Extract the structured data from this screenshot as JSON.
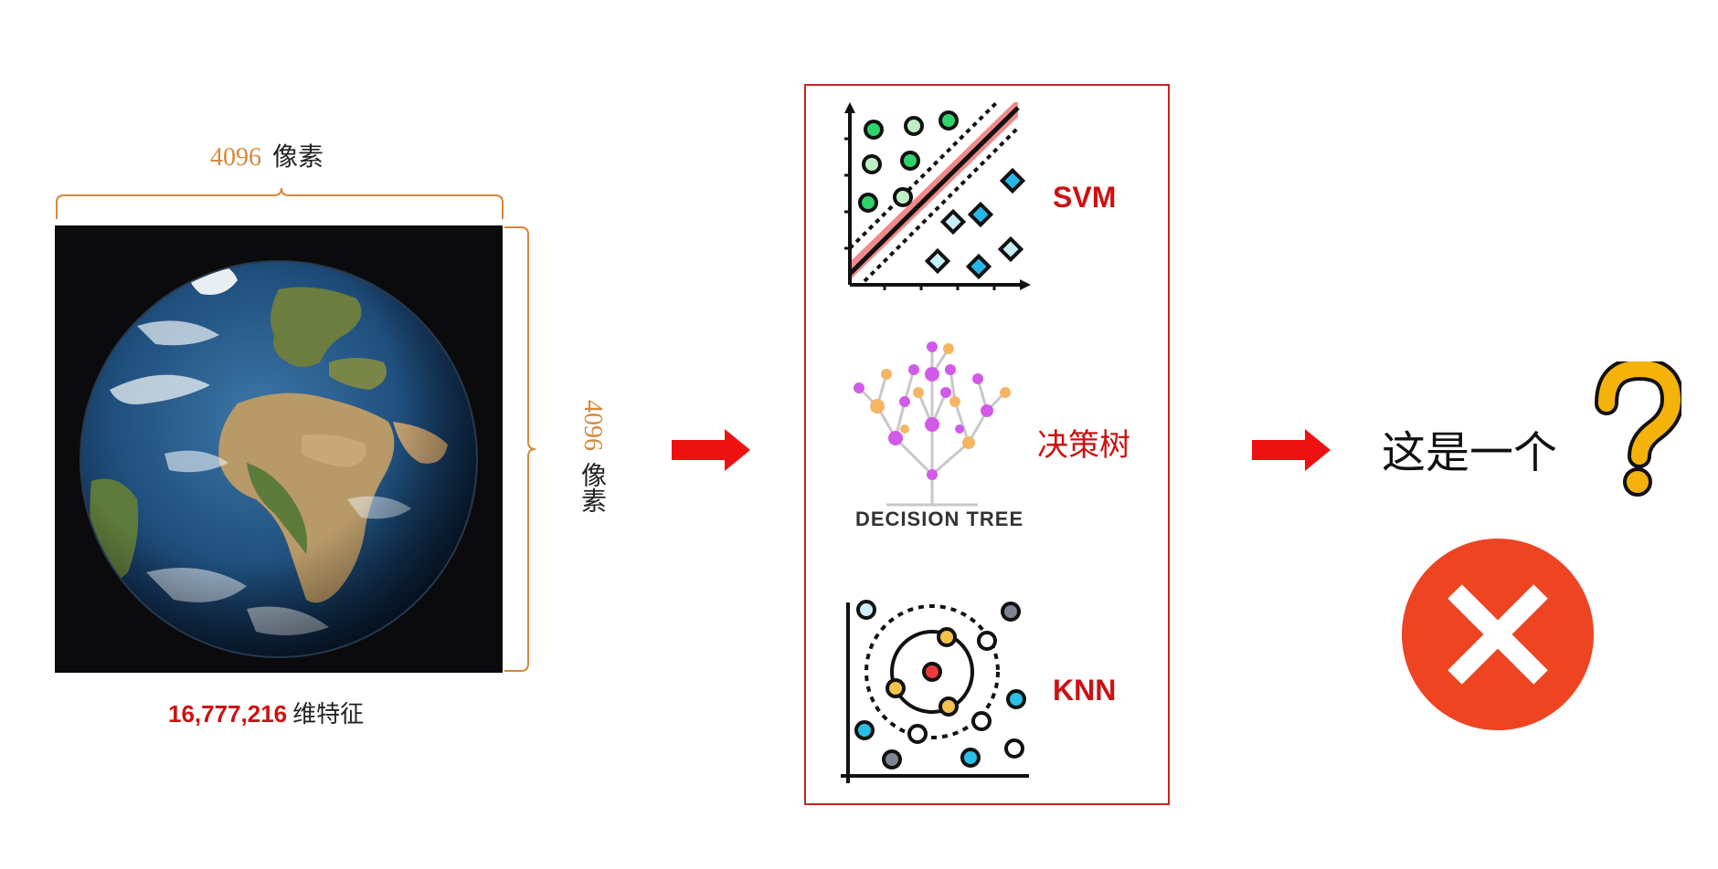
{
  "input_image": {
    "width_label": {
      "value": "4096",
      "unit": "像素"
    },
    "height_label": {
      "value": "4096",
      "unit": "像素"
    },
    "feature_count": {
      "value": "16,777,216",
      "unit": "维特征"
    }
  },
  "models": {
    "svm": {
      "label": "SVM",
      "icon": "svm-chart-icon"
    },
    "decision_tree": {
      "label": "决策树",
      "caption": "DECISION TREE",
      "icon": "decision-tree-icon"
    },
    "knn": {
      "label": "KNN",
      "icon": "knn-chart-icon"
    }
  },
  "result": {
    "question": "这是一个",
    "question_mark_icon": "question-mark-icon",
    "wrong_icon": "wrong-x-icon"
  },
  "colors": {
    "accent_red": "#cc1111",
    "dimension_orange": "#d4893a",
    "arrow_red": "#ee1111",
    "wrong_red": "#ee4422",
    "question_yellow": "#f5b20a"
  }
}
